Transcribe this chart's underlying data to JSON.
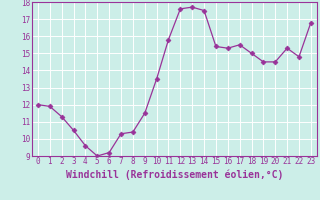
{
  "x": [
    0,
    1,
    2,
    3,
    4,
    5,
    6,
    7,
    8,
    9,
    10,
    11,
    12,
    13,
    14,
    15,
    16,
    17,
    18,
    19,
    20,
    21,
    22,
    23
  ],
  "y": [
    12.0,
    11.9,
    11.3,
    10.5,
    9.6,
    9.0,
    9.2,
    10.3,
    10.4,
    11.5,
    13.5,
    15.8,
    17.6,
    17.7,
    17.5,
    15.4,
    15.3,
    15.5,
    15.0,
    14.5,
    14.5,
    15.3,
    14.8,
    16.8
  ],
  "line_color": "#993399",
  "marker": "D",
  "marker_size": 2.5,
  "bg_color": "#cceee8",
  "grid_color": "#ffffff",
  "xlabel": "Windchill (Refroidissement éolien,°C)",
  "ylim": [
    9,
    18
  ],
  "xlim": [
    -0.5,
    23.5
  ],
  "yticks": [
    9,
    10,
    11,
    12,
    13,
    14,
    15,
    16,
    17,
    18
  ],
  "xticks": [
    0,
    1,
    2,
    3,
    4,
    5,
    6,
    7,
    8,
    9,
    10,
    11,
    12,
    13,
    14,
    15,
    16,
    17,
    18,
    19,
    20,
    21,
    22,
    23
  ],
  "tick_fontsize": 5.5,
  "xlabel_fontsize": 7.0
}
